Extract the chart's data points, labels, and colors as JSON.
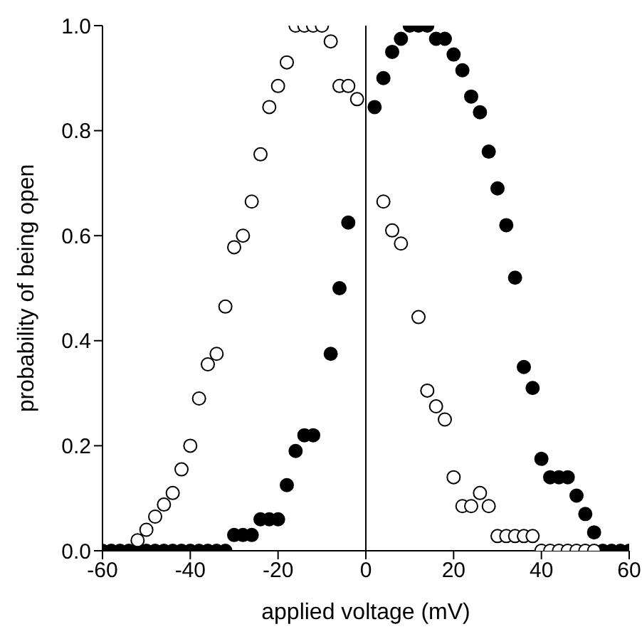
{
  "chart_data": {
    "type": "scatter",
    "xlabel": "applied voltage (mV)",
    "ylabel": "probability of being open",
    "xlim": [
      -60,
      60
    ],
    "xticks": [
      -60,
      -40,
      -20,
      0,
      20,
      40,
      60
    ],
    "ylim": [
      0,
      1
    ],
    "yticks": [
      {
        "value": 0,
        "label": "0.0"
      },
      {
        "value": 0.2,
        "label": "0.2"
      },
      {
        "value": 0.4,
        "label": "0.4"
      },
      {
        "value": 0.6,
        "label": "0.6"
      },
      {
        "value": 0.8,
        "label": "0.8"
      },
      {
        "value": 1,
        "label": "1.0"
      }
    ],
    "marker": "circle",
    "grid": false,
    "legend": false,
    "ref_lines": [
      {
        "axis": "x",
        "value": 0,
        "color": "#000000"
      }
    ],
    "series": [
      {
        "color": "#000000",
        "x": [
          -60,
          -58,
          -56,
          -54,
          -52,
          -50,
          -48,
          -46,
          -44,
          -42,
          -40,
          -38,
          -36,
          -34,
          -32,
          -30,
          -28,
          -26,
          -24,
          -22,
          -20,
          -18,
          -16,
          -14,
          -12,
          -8,
          -6,
          -4,
          2,
          4,
          6,
          8,
          10,
          12,
          14,
          16,
          18,
          20,
          22,
          24,
          26,
          28,
          30,
          32,
          34,
          36,
          38,
          40,
          42,
          44,
          46,
          48,
          50,
          52,
          54,
          56,
          58,
          60
        ],
        "values": [
          0,
          0,
          0,
          0,
          0,
          0,
          0,
          0,
          0,
          0,
          0,
          0,
          0,
          0,
          0,
          0.03,
          0.03,
          0.03,
          0.06,
          0.06,
          0.06,
          0.125,
          0.19,
          0.22,
          0.22,
          0.375,
          0.5,
          0.625,
          0.845,
          0.9,
          0.95,
          0.975,
          1,
          1,
          1,
          0.975,
          0.975,
          0.945,
          0.915,
          0.865,
          0.835,
          0.76,
          0.69,
          0.62,
          0.52,
          0.35,
          0.31,
          0.175,
          0.14,
          0.14,
          0.14,
          0.105,
          0.07,
          0.035,
          0,
          0,
          0,
          0
        ]
      },
      {
        "color": "#000000",
        "x": [
          -52,
          -50,
          -48,
          -46,
          -44,
          -42,
          -40,
          -38,
          -36,
          -34,
          -32,
          -30,
          -28,
          -26,
          -24,
          -22,
          -20,
          -18,
          -16,
          -14,
          -12,
          -10,
          -8,
          -6,
          -4,
          -2,
          4,
          6,
          8,
          12,
          14,
          16,
          18,
          20,
          22,
          24,
          26,
          28,
          30,
          32,
          34,
          36,
          38,
          40,
          42,
          44,
          46,
          48,
          50,
          52
        ],
        "values": [
          0.02,
          0.04,
          0.065,
          0.088,
          0.11,
          0.155,
          0.2,
          0.29,
          0.355,
          0.375,
          0.465,
          0.578,
          0.6,
          0.665,
          0.755,
          0.845,
          0.885,
          0.93,
          1,
          1,
          1,
          1,
          0.97,
          0.885,
          0.885,
          0.86,
          0.665,
          0.61,
          0.585,
          0.445,
          0.305,
          0.275,
          0.25,
          0.14,
          0.085,
          0.085,
          0.11,
          0.085,
          0.028,
          0.028,
          0.028,
          0.028,
          0.028,
          0,
          0,
          0,
          0,
          0,
          0,
          0
        ]
      }
    ]
  }
}
